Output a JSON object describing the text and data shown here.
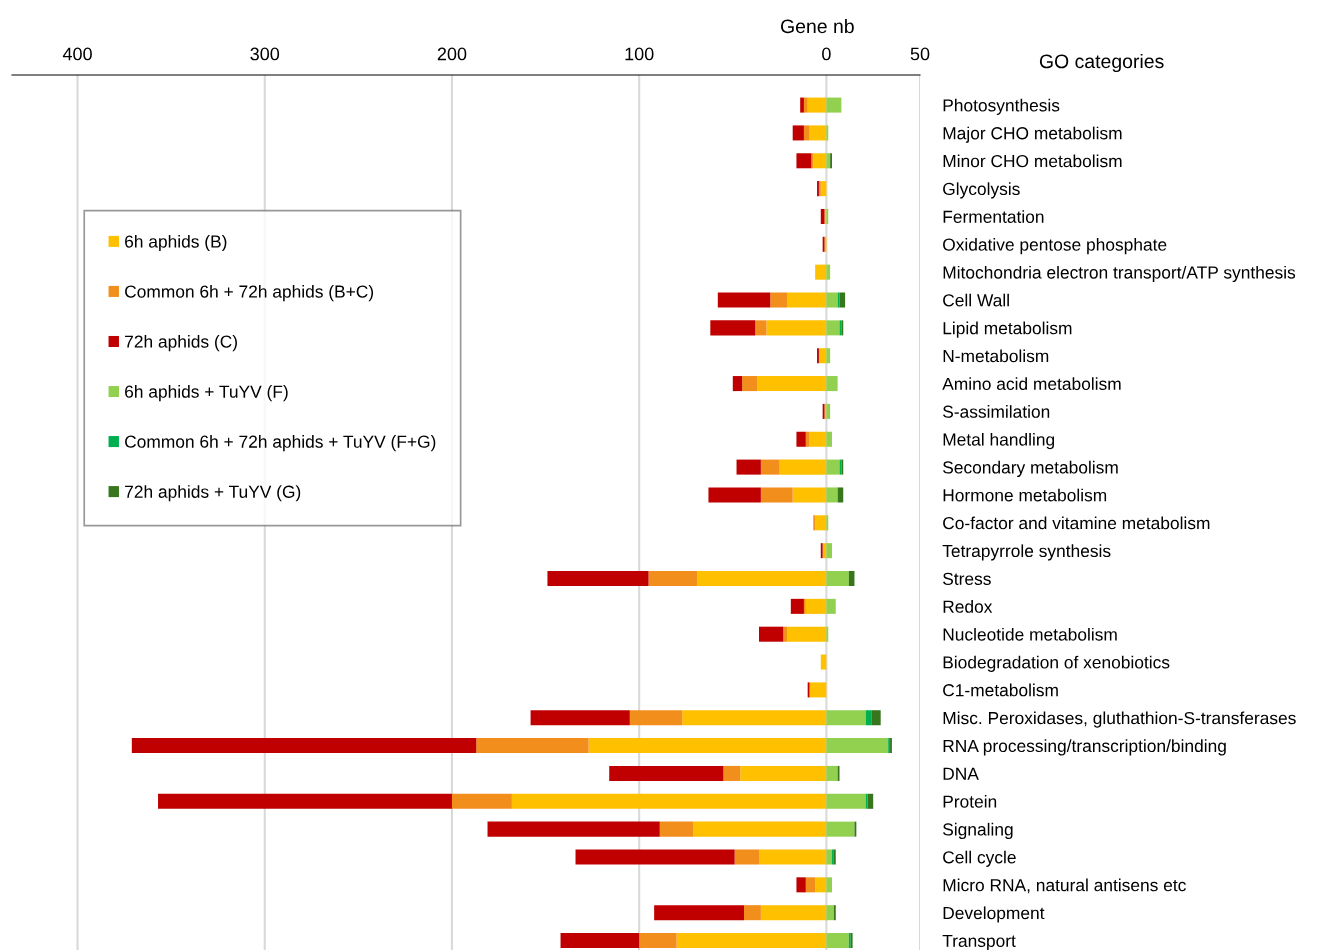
{
  "chart_data": {
    "type": "bar",
    "orientation": "horizontal",
    "stacked": true,
    "xlabel": "Gene nb",
    "ylabel": "GO categories",
    "categories": [
      "Photosynthesis",
      "Major CHO metabolism",
      "Minor CHO metabolism",
      "Glycolysis",
      "Fermentation",
      "Oxidative pentose phosphate",
      "Mitochondria electron transport/ATP synthesis",
      "Cell Wall",
      "Lipid metabolism",
      "N-metabolism",
      "Amino acid metabolism",
      "S-assimilation",
      "Metal handling",
      "Secondary metabolism",
      "Hormone metabolism",
      "Co-factor and vitamine metabolism",
      "Tetrapyrrole synthesis",
      "Stress",
      "Redox",
      "Nucleotide metabolism",
      "Biodegradation of xenobiotics",
      "C1-metabolism",
      "Misc. Peroxidases, gluthathion-S-transferases",
      "RNA processing/transcription/binding",
      "DNA",
      "Protein",
      "Signaling",
      "Cell cycle",
      "Micro RNA, natural antisens etc",
      "Development",
      "Transport"
    ],
    "series": [
      {
        "name": "6h aphids (B)",
        "color": "#ffc000",
        "values": [
          -10,
          -9,
          -7,
          -3,
          -1,
          -1,
          -6,
          -21,
          -32,
          -4,
          -37,
          -1,
          -9,
          -25,
          -18,
          -6,
          -2,
          -69,
          -11,
          -21,
          -3,
          -9,
          -77,
          -127,
          -46,
          -168,
          -71,
          -36,
          -6,
          -35,
          -80
        ]
      },
      {
        "name": "Common 6h + 72h aphids (B+C)",
        "color": "#f28e1c",
        "values": [
          -2,
          -3,
          -1,
          -1,
          0,
          0,
          0,
          -9,
          -6,
          0,
          -8,
          0,
          -2,
          -10,
          -17,
          -1,
          0,
          -26,
          -1,
          -2,
          0,
          0,
          -28,
          -60,
          -9,
          -32,
          -18,
          -13,
          -5,
          -9,
          -20
        ]
      },
      {
        "name": "72h aphids (C)",
        "color": "#c00000",
        "values": [
          -2,
          -6,
          -8,
          -1,
          -2,
          -1,
          0,
          -28,
          -24,
          -1,
          -5,
          -1,
          -5,
          -13,
          -28,
          0,
          -1,
          -54,
          -7,
          -13,
          0,
          -1,
          -53,
          -184,
          -61,
          -157,
          -92,
          -85,
          -5,
          -48,
          -42
        ]
      },
      {
        "name": "6h aphids + TuYV (F)",
        "color": "#92d050",
        "values": [
          8,
          1,
          2,
          0,
          1,
          0,
          2,
          6,
          7,
          2,
          6,
          2,
          3,
          7,
          6,
          1,
          3,
          12,
          5,
          1,
          0,
          0,
          21,
          33,
          6,
          21,
          15,
          3,
          3,
          4,
          12
        ]
      },
      {
        "name": "Common 6h + 72h aphids + TuYV (F+G)",
        "color": "#00b050",
        "values": [
          0,
          0,
          0,
          0,
          0,
          0,
          0,
          1,
          1,
          0,
          0,
          0,
          0,
          1,
          0,
          0,
          0,
          0,
          0,
          0,
          0,
          0,
          3,
          1,
          0,
          1,
          0,
          1,
          0,
          0,
          1
        ]
      },
      {
        "name": "72h aphids + TuYV (G)",
        "color": "#38761d",
        "values": [
          0,
          0,
          1,
          0,
          0,
          0,
          0,
          3,
          1,
          0,
          0,
          0,
          0,
          1,
          3,
          0,
          0,
          3,
          0,
          0,
          0,
          0,
          5,
          1,
          1,
          3,
          1,
          1,
          0,
          1,
          1
        ]
      }
    ],
    "xlim": [
      -435,
      50
    ],
    "xticks": [
      {
        "value": -400,
        "label": "400"
      },
      {
        "value": -300,
        "label": "300"
      },
      {
        "value": -200,
        "label": "200"
      },
      {
        "value": -100,
        "label": "100"
      },
      0,
      50
    ],
    "grid": "x",
    "legend": "left"
  }
}
